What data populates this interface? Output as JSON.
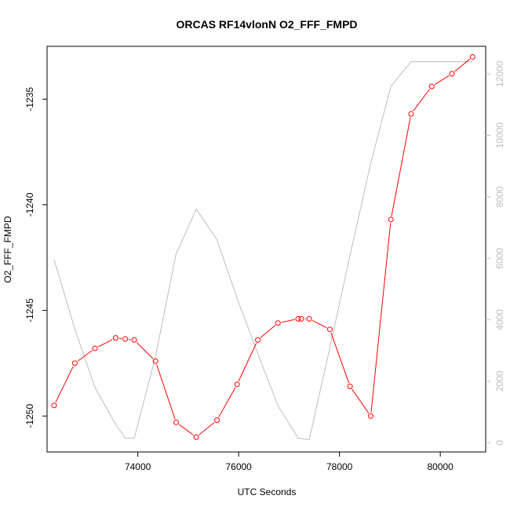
{
  "chart_data": {
    "type": "line",
    "title": "ORCAS RF14vlonN O2_FFF_FMPD",
    "xlabel": "UTC Seconds",
    "ylabel": "O2_FFF_FMPD",
    "xlim": [
      72200,
      80900
    ],
    "ylim": [
      -1251.7,
      -1232.5
    ],
    "y2lim": [
      -300,
      12900
    ],
    "x_ticks": [
      74000,
      76000,
      78000,
      80000
    ],
    "y_ticks": [
      -1250,
      -1245,
      -1240,
      -1235
    ],
    "y2_ticks": [
      0,
      2000,
      4000,
      6000,
      8000,
      10000,
      12000
    ],
    "grid": false,
    "series": [
      {
        "axis": "left",
        "color": "#ff0000",
        "markers": true,
        "x": [
          72340,
          72750,
          73150,
          73560,
          73750,
          73930,
          74350,
          74760,
          75160,
          75570,
          75970,
          76380,
          76780,
          77180,
          77240,
          77400,
          77810,
          78210,
          78620,
          79020,
          79420,
          79830,
          80230,
          80640
        ],
        "y": [
          -1249.5,
          -1247.5,
          -1246.8,
          -1246.3,
          -1246.35,
          -1246.4,
          -1247.4,
          -1250.3,
          -1251.0,
          -1250.2,
          -1248.5,
          -1246.4,
          -1245.6,
          -1245.4,
          -1245.4,
          -1245.4,
          -1245.9,
          -1248.6,
          -1250.0,
          -1240.7,
          -1235.7,
          -1234.4,
          -1233.8,
          -1233.0
        ]
      },
      {
        "axis": "right",
        "color": "#bebebe",
        "markers": false,
        "x": [
          72340,
          72750,
          73150,
          73560,
          73750,
          73930,
          74350,
          74760,
          75160,
          75570,
          75970,
          76380,
          76780,
          77180,
          77400,
          77810,
          78210,
          78620,
          79020,
          79420,
          79830,
          80230,
          80640
        ],
        "y": [
          5950,
          3700,
          1800,
          600,
          150,
          150,
          2800,
          6150,
          7600,
          6600,
          4700,
          2900,
          1200,
          150,
          100,
          3100,
          6100,
          9100,
          11600,
          12400,
          12400,
          12400,
          12400
        ]
      }
    ]
  }
}
